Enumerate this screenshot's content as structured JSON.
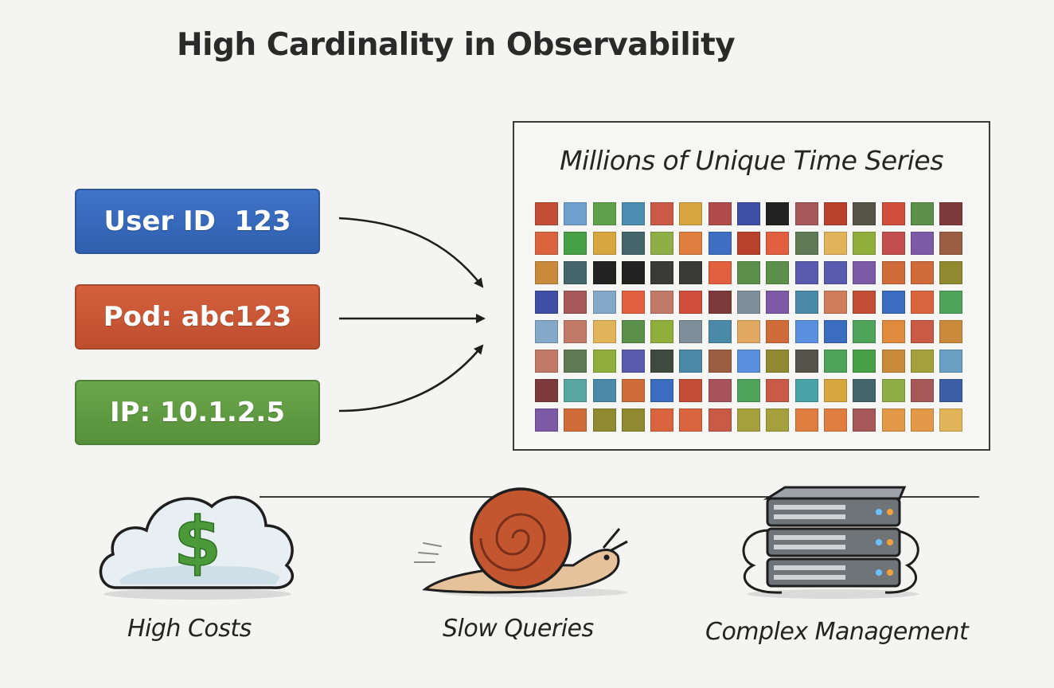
{
  "title": "High Cardinality in Observability",
  "labels": [
    {
      "text": "User ID  123",
      "color": "#3a6cbf"
    },
    {
      "text": "Pod: abc123",
      "color": "#c9573a"
    },
    {
      "text": "IP: 10.1.2.5",
      "color": "#619b45"
    }
  ],
  "series_panel": {
    "title": "Millions of Unique Time Series",
    "rows": 8,
    "cols": 15
  },
  "palette": [
    "#c44e35",
    "#3a6cbf",
    "#8f8a2f",
    "#6e9fcd",
    "#a8535a",
    "#56534a",
    "#5da14a",
    "#d9643e",
    "#4fa35a",
    "#4e8db2",
    "#e08a3d",
    "#48a046",
    "#c85a46",
    "#5b84c6",
    "#c98a3c",
    "#d8a63e",
    "#48a3a8",
    "#a4a03c",
    "#b04c4c",
    "#45656d",
    "#6b9fc3",
    "#3f4fa5",
    "#e07e3f",
    "#8fae45",
    "#222222",
    "#7fb39c",
    "#3e6fc2",
    "#a75959",
    "#84a8c7",
    "#3a3a38",
    "#b9402b",
    "#3c5fa8",
    "#e39a48",
    "#545547",
    "#e25f3f",
    "#c27a68",
    "#cf4e3c",
    "#e2b45a",
    "#5e7b55",
    "#5b8f4a",
    "#4a4a42",
    "#8fae3b",
    "#7e3a3a",
    "#7e8f9a",
    "#5a5bae",
    "#c24e4e",
    "#57a6a0",
    "#3e4a3e",
    "#cc7a58",
    "#7d5aa6",
    "#4a8aa8",
    "#cf7d5a",
    "#e0a860",
    "#9b5e42",
    "#d06b3a",
    "#e15a2f",
    "#5a8fe0"
  ],
  "outcomes": [
    {
      "label": "High Costs",
      "icon": "money-cloud-icon"
    },
    {
      "label": "Slow Queries",
      "icon": "snail-icon"
    },
    {
      "label": "Complex Management",
      "icon": "server-stack-icon"
    }
  ]
}
